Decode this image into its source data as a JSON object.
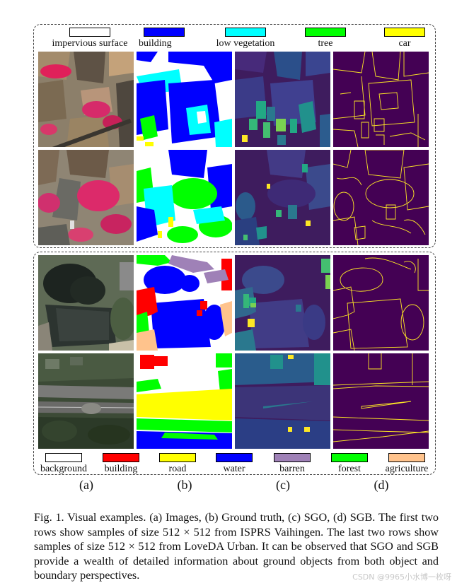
{
  "figure": {
    "legend_top": [
      {
        "label": "impervious surface",
        "color": "#ffffff"
      },
      {
        "label": "building",
        "color": "#0000ff"
      },
      {
        "label": "low vegetation",
        "color": "#00ffff"
      },
      {
        "label": "tree",
        "color": "#00ff00"
      },
      {
        "label": "car",
        "color": "#ffff00"
      }
    ],
    "legend_bottom": [
      {
        "label": "background",
        "color": "#ffffff"
      },
      {
        "label": "building",
        "color": "#ff0000"
      },
      {
        "label": "road",
        "color": "#ffff00"
      },
      {
        "label": "water",
        "color": "#0000ff"
      },
      {
        "label": "barren",
        "color": "#9f81b7"
      },
      {
        "label": "forest",
        "color": "#00ff00"
      },
      {
        "label": "agriculture",
        "color": "#ffc38c"
      }
    ],
    "column_labels": [
      "(a)",
      "(b)",
      "(c)",
      "(d)"
    ]
  },
  "caption": {
    "line1": "Fig. 1.  Visual examples. (a) Images, (b) Ground truth, (c) SGO, (d) SGB.",
    "line2": "The first two rows show samples of size 512 × 512 from ISPRS Vaihingen.",
    "line3": "The last two rows show samples of size 512 × 512 from LoveDA Urban. It",
    "line4": "can be observed that SGO and SGB provide a wealth of detailed information",
    "line5": "about ground objects from both object and boundary perspectives."
  },
  "watermark": "CSDN @9965小水博一枚呀"
}
